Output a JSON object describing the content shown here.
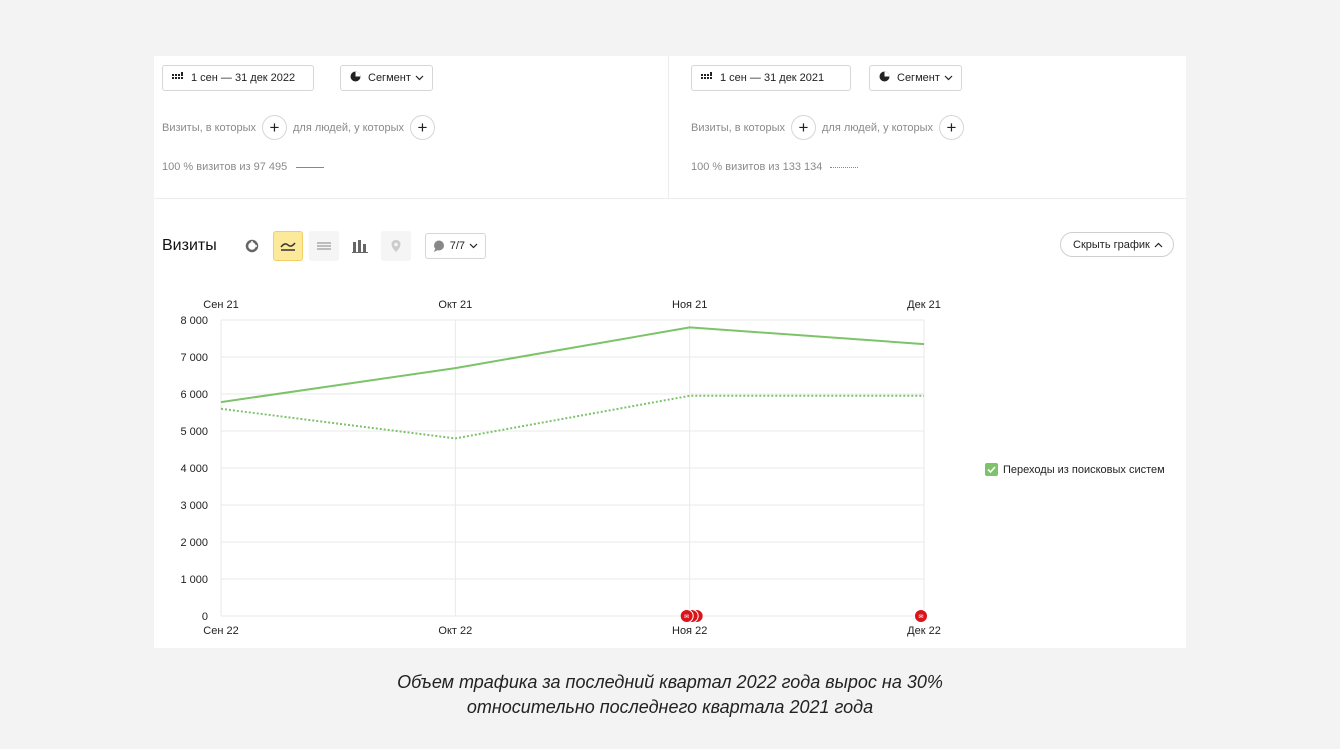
{
  "segments": [
    {
      "date_range": "1 сен — 31 дек 2022",
      "segment_label": "Сегмент",
      "visits_in_which": "Визиты, в которых",
      "for_people_where": "для людей, у которых",
      "visits_info": "100 % визитов из 97 495",
      "line_style": "solid"
    },
    {
      "date_range": "1 сен — 31 дек 2021",
      "segment_label": "Сегмент",
      "visits_in_which": "Визиты, в которых",
      "for_people_where": "для людей, у которых",
      "visits_info": "100 % визитов из 133 134",
      "line_style": "dotted"
    }
  ],
  "toolbar": {
    "title": "Визиты",
    "filter_count": "7/7",
    "hide_chart": "Скрыть график"
  },
  "legend": {
    "label": "Переходы из поисковых систем",
    "color": "#7cc36a"
  },
  "annotations": [
    {
      "category": "Ноя 22",
      "count": 3
    },
    {
      "category": "Дек 22",
      "count": 1
    }
  ],
  "chart_data": {
    "type": "line",
    "categories": [
      "Сен 22",
      "Окт 22",
      "Ноя 22",
      "Дек 22"
    ],
    "categories_top": [
      "Сен 21",
      "Окт 21",
      "Ноя 21",
      "Дек 21"
    ],
    "ylim": [
      0,
      8000
    ],
    "yticks": [
      "0",
      "1 000",
      "2 000",
      "3 000",
      "4 000",
      "5 000",
      "6 000",
      "7 000",
      "8 000"
    ],
    "series": [
      {
        "name": "Переходы из поисковых систем",
        "period": "1 сен — 31 дек 2022",
        "style": "solid",
        "color": "#7cc36a",
        "values": [
          5780,
          6700,
          7800,
          7350
        ]
      },
      {
        "name": "Переходы из поисковых систем",
        "period": "1 сен — 31 дек 2021",
        "style": "dotted",
        "color": "#7cc36a",
        "values": [
          5600,
          4800,
          5950,
          5950
        ]
      }
    ],
    "grid": true,
    "legend_position": "right"
  },
  "caption": {
    "line1": "Объем трафика за последний квартал 2022 года вырос на 30%",
    "line2": "относительно последнего квартала 2021 года"
  }
}
